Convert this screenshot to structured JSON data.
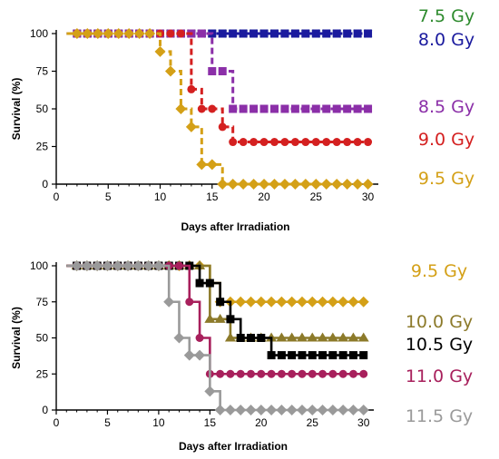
{
  "chart_data": [
    {
      "type": "line",
      "step": true,
      "title": "",
      "xlabel": "Days after Irradiation",
      "ylabel": "Survival (%)",
      "xlim": [
        0,
        31
      ],
      "ylim": [
        0,
        100
      ],
      "xticks": [
        0,
        5,
        10,
        15,
        20,
        25,
        30
      ],
      "yticks": [
        0,
        25,
        50,
        75,
        100
      ],
      "legend_placement": "right",
      "series": [
        {
          "name": "7.5 Gy",
          "color": "#2e8b2e",
          "line": "dashed",
          "marker": "cross",
          "x": [
            2,
            3,
            4,
            5,
            6,
            7,
            8,
            9,
            10,
            11,
            12,
            13,
            14,
            15,
            16,
            17,
            18,
            19,
            20,
            21,
            22,
            23,
            24,
            25,
            26,
            27,
            28,
            29,
            30
          ],
          "y": [
            100,
            100,
            100,
            100,
            100,
            100,
            100,
            100,
            100,
            100,
            100,
            100,
            100,
            100,
            100,
            100,
            100,
            100,
            100,
            100,
            100,
            100,
            100,
            100,
            100,
            100,
            100,
            100,
            100
          ]
        },
        {
          "name": "8.0 Gy",
          "color": "#1a1a9e",
          "line": "dashed",
          "marker": "square",
          "x": [
            2,
            3,
            4,
            5,
            6,
            7,
            8,
            9,
            10,
            11,
            12,
            13,
            14,
            15,
            16,
            17,
            18,
            19,
            20,
            21,
            22,
            23,
            24,
            25,
            26,
            27,
            28,
            29,
            30
          ],
          "y": [
            100,
            100,
            100,
            100,
            100,
            100,
            100,
            100,
            100,
            100,
            100,
            100,
            100,
            100,
            100,
            100,
            100,
            100,
            100,
            100,
            100,
            100,
            100,
            100,
            100,
            100,
            100,
            100,
            100
          ]
        },
        {
          "name": "8.5 Gy",
          "color": "#8b2fa8",
          "line": "dashed",
          "marker": "square",
          "x": [
            2,
            3,
            4,
            5,
            6,
            7,
            8,
            9,
            10,
            11,
            12,
            13,
            14,
            15,
            16,
            17,
            18,
            19,
            20,
            21,
            22,
            23,
            24,
            25,
            26,
            27,
            28,
            29,
            30
          ],
          "y": [
            100,
            100,
            100,
            100,
            100,
            100,
            100,
            100,
            100,
            100,
            100,
            100,
            100,
            75,
            75,
            50,
            50,
            50,
            50,
            50,
            50,
            50,
            50,
            50,
            50,
            50,
            50,
            50,
            50
          ]
        },
        {
          "name": "9.0 Gy",
          "color": "#d42020",
          "line": "dashed",
          "marker": "circle",
          "x": [
            2,
            3,
            4,
            5,
            6,
            7,
            8,
            9,
            10,
            11,
            12,
            13,
            14,
            15,
            16,
            17,
            18,
            19,
            20,
            21,
            22,
            23,
            24,
            25,
            26,
            27,
            28,
            29,
            30
          ],
          "y": [
            100,
            100,
            100,
            100,
            100,
            100,
            100,
            100,
            100,
            100,
            100,
            63,
            50,
            50,
            38,
            28,
            28,
            28,
            28,
            28,
            28,
            28,
            28,
            28,
            28,
            28,
            28,
            28,
            28
          ]
        },
        {
          "name": "9.5 Gy",
          "color": "#d4a017",
          "line": "dashed",
          "marker": "diamond",
          "x": [
            2,
            3,
            4,
            5,
            6,
            7,
            8,
            9,
            10,
            11,
            12,
            13,
            14,
            15,
            16,
            17,
            18,
            19,
            20,
            21,
            22,
            23,
            24,
            25,
            26,
            27,
            28,
            29,
            30
          ],
          "y": [
            100,
            100,
            100,
            100,
            100,
            100,
            100,
            100,
            88,
            75,
            50,
            38,
            13,
            13,
            0,
            0,
            0,
            0,
            0,
            0,
            0,
            0,
            0,
            0,
            0,
            0,
            0,
            0,
            0
          ]
        }
      ]
    },
    {
      "type": "line",
      "step": true,
      "title": "",
      "xlabel": "Days after Irradiation",
      "ylabel": "Survival (%)",
      "xlim": [
        0,
        31
      ],
      "ylim": [
        0,
        100
      ],
      "xticks": [
        0,
        5,
        10,
        15,
        20,
        25,
        30
      ],
      "yticks": [
        0,
        25,
        50,
        75,
        100
      ],
      "legend_placement": "right",
      "series": [
        {
          "name": "9.5 Gy",
          "color": "#d4a017",
          "line": "solid",
          "marker": "diamond",
          "x": [
            2,
            3,
            4,
            5,
            6,
            7,
            8,
            9,
            10,
            11,
            12,
            13,
            14,
            15,
            16,
            17,
            18,
            19,
            20,
            21,
            22,
            23,
            24,
            25,
            26,
            27,
            28,
            29,
            30
          ],
          "y": [
            100,
            100,
            100,
            100,
            100,
            100,
            100,
            100,
            100,
            100,
            100,
            100,
            100,
            88,
            75,
            75,
            75,
            75,
            75,
            75,
            75,
            75,
            75,
            75,
            75,
            75,
            75,
            75,
            75
          ]
        },
        {
          "name": "10.0 Gy",
          "color": "#8c7a2a",
          "line": "solid",
          "marker": "triangle",
          "x": [
            2,
            3,
            4,
            5,
            6,
            7,
            8,
            9,
            10,
            11,
            12,
            13,
            14,
            15,
            16,
            17,
            18,
            19,
            20,
            21,
            22,
            23,
            24,
            25,
            26,
            27,
            28,
            29,
            30
          ],
          "y": [
            100,
            100,
            100,
            100,
            100,
            100,
            100,
            100,
            100,
            100,
            100,
            100,
            100,
            63,
            63,
            50,
            50,
            50,
            50,
            50,
            50,
            50,
            50,
            50,
            50,
            50,
            50,
            50,
            50
          ]
        },
        {
          "name": "10.5 Gy",
          "color": "#000000",
          "line": "solid",
          "marker": "square",
          "x": [
            2,
            3,
            4,
            5,
            6,
            7,
            8,
            9,
            10,
            11,
            12,
            13,
            14,
            15,
            16,
            17,
            18,
            19,
            20,
            21,
            22,
            23,
            24,
            25,
            26,
            27,
            28,
            29,
            30
          ],
          "y": [
            100,
            100,
            100,
            100,
            100,
            100,
            100,
            100,
            100,
            100,
            100,
            100,
            88,
            88,
            75,
            63,
            50,
            50,
            50,
            38,
            38,
            38,
            38,
            38,
            38,
            38,
            38,
            38,
            38
          ]
        },
        {
          "name": "11.0 Gy",
          "color": "#a8205c",
          "line": "solid",
          "marker": "circle",
          "x": [
            2,
            3,
            4,
            5,
            6,
            7,
            8,
            9,
            10,
            11,
            12,
            13,
            14,
            15,
            16,
            17,
            18,
            19,
            20,
            21,
            22,
            23,
            24,
            25,
            26,
            27,
            28,
            29,
            30
          ],
          "y": [
            100,
            100,
            100,
            100,
            100,
            100,
            100,
            100,
            100,
            100,
            100,
            75,
            50,
            25,
            25,
            25,
            25,
            25,
            25,
            25,
            25,
            25,
            25,
            25,
            25,
            25,
            25,
            25,
            25
          ]
        },
        {
          "name": "11.5 Gy",
          "color": "#9a9a9a",
          "line": "solid",
          "marker": "diamond",
          "x": [
            2,
            3,
            4,
            5,
            6,
            7,
            8,
            9,
            10,
            11,
            12,
            13,
            14,
            15,
            16,
            17,
            18,
            19,
            20,
            21,
            22,
            23,
            24,
            25,
            26,
            27,
            28,
            29,
            30
          ],
          "y": [
            100,
            100,
            100,
            100,
            100,
            100,
            100,
            100,
            100,
            75,
            50,
            38,
            38,
            13,
            0,
            0,
            0,
            0,
            0,
            0,
            0,
            0,
            0,
            0,
            0,
            0,
            0,
            0,
            0
          ]
        }
      ]
    }
  ]
}
